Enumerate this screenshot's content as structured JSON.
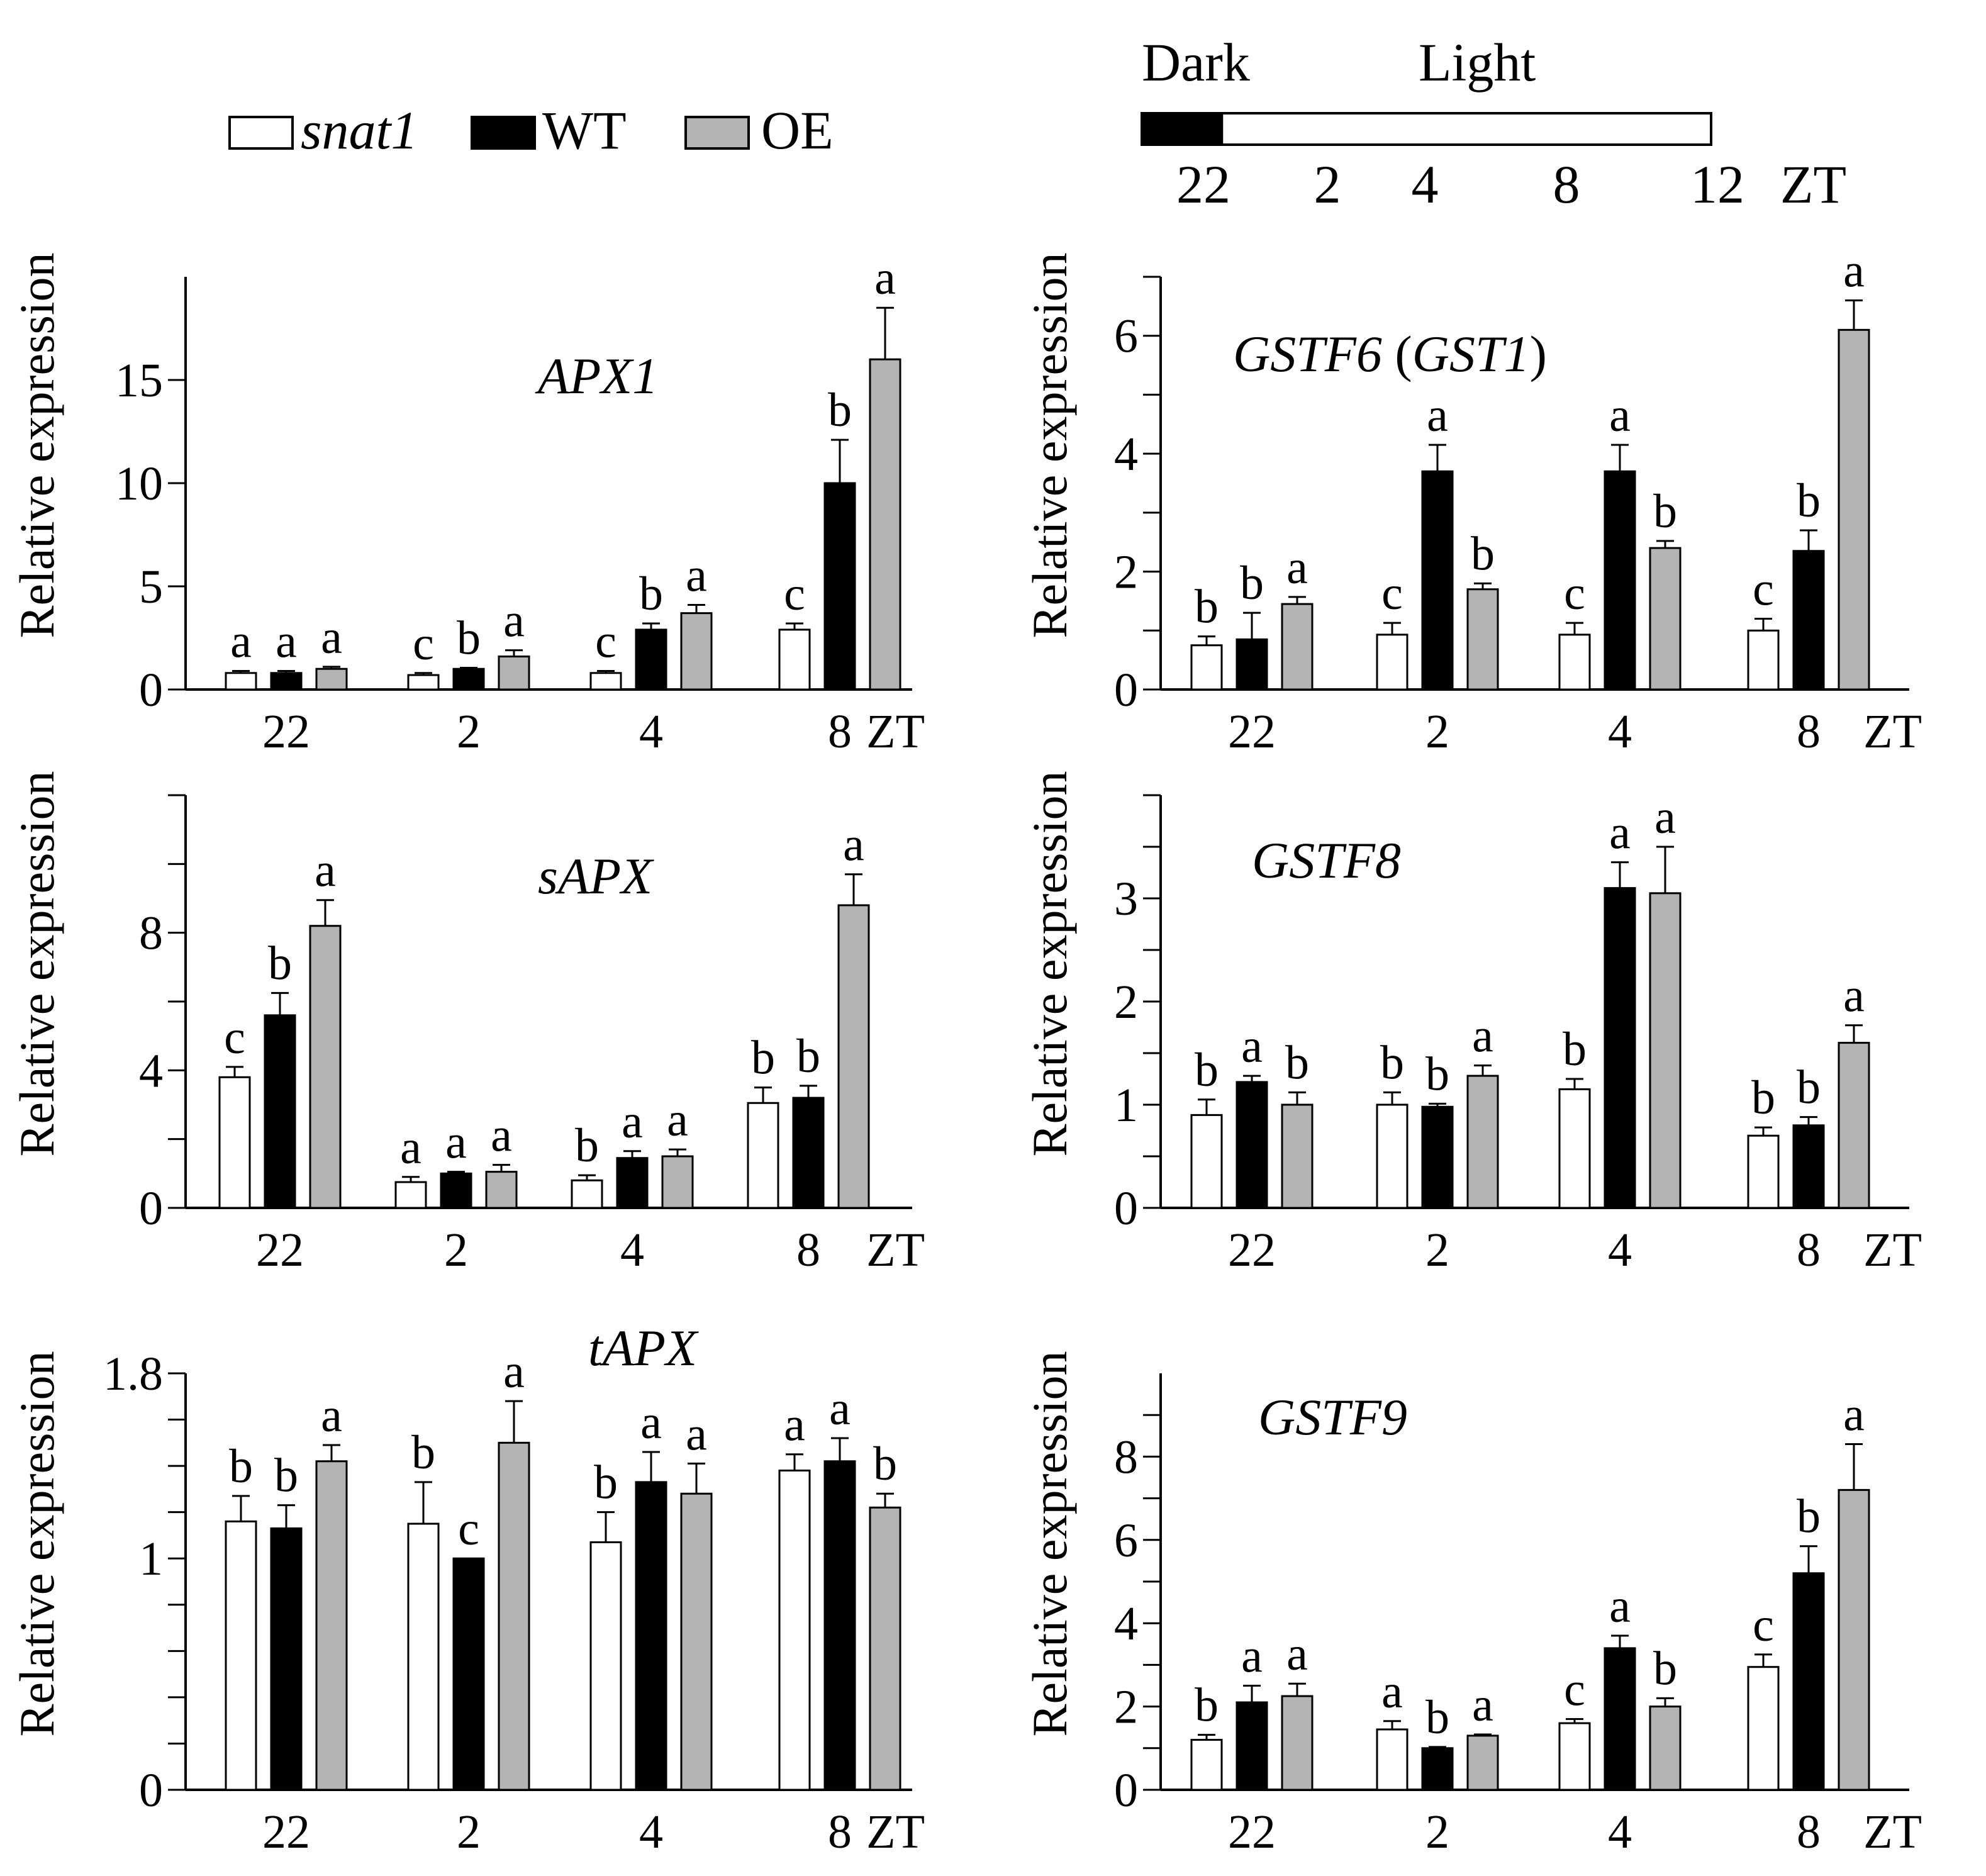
{
  "legend": {
    "items": [
      {
        "label": "snat1",
        "italic": true,
        "fill": "#ffffff"
      },
      {
        "label": "WT",
        "italic": false,
        "fill": "#000000"
      },
      {
        "label": "OE",
        "italic": false,
        "fill": "#b4b4b4"
      }
    ]
  },
  "photoperiod": {
    "dark_label": "Dark",
    "light_label": "Light",
    "dark_start_zt": 22,
    "dark_end_zt": 24,
    "end_zt": 12,
    "ticks": [
      "22",
      "2",
      "4",
      "8",
      "12"
    ],
    "unit": "ZT"
  },
  "colors": {
    "snat1": "#ffffff",
    "WT": "#000000",
    "OE": "#b4b4b4",
    "axis": "#000000"
  },
  "chart_data": [
    {
      "type": "bar",
      "panel": "A",
      "title": "APX1",
      "title_parts": [
        {
          "text": "APX1",
          "italic": true
        }
      ],
      "ylabel": "Relative expression",
      "xlabel": "ZT",
      "categories": [
        "22",
        "2",
        "4",
        "8"
      ],
      "ylim": [
        0,
        20
      ],
      "yticks_labeled": [
        0,
        5,
        10,
        15
      ],
      "yminor": [],
      "series": [
        {
          "name": "snat1",
          "values": [
            0.8,
            0.7,
            0.8,
            2.9
          ],
          "errors": [
            0.1,
            0.1,
            0.1,
            0.3
          ],
          "letters": [
            "a",
            "c",
            "c",
            "c"
          ]
        },
        {
          "name": "WT",
          "values": [
            0.8,
            1.0,
            2.9,
            10.0
          ],
          "errors": [
            0.1,
            0.05,
            0.3,
            2.1
          ],
          "letters": [
            "a",
            "b",
            "b",
            "b"
          ]
        },
        {
          "name": "OE",
          "values": [
            1.0,
            1.6,
            3.7,
            16.0
          ],
          "errors": [
            0.1,
            0.3,
            0.4,
            2.5
          ],
          "letters": [
            "a",
            "a",
            "a",
            "a"
          ]
        }
      ]
    },
    {
      "type": "bar",
      "panel": "B",
      "title": "GSTF6 (GST1)",
      "title_parts": [
        {
          "text": "GSTF6",
          "italic": true
        },
        {
          "text": " (",
          "italic": false
        },
        {
          "text": "GST1",
          "italic": true
        },
        {
          "text": ")",
          "italic": false
        }
      ],
      "ylabel": "Relative expression",
      "xlabel": "ZT",
      "categories": [
        "22",
        "2",
        "4",
        "8"
      ],
      "ylim": [
        0,
        7
      ],
      "yticks_labeled": [
        0,
        2,
        4,
        6
      ],
      "yminor": [
        1,
        3,
        5,
        7
      ],
      "series": [
        {
          "name": "snat1",
          "values": [
            0.75,
            0.93,
            0.93,
            1.0
          ],
          "errors": [
            0.15,
            0.2,
            0.2,
            0.2
          ],
          "letters": [
            "b",
            "c",
            "c",
            "c"
          ]
        },
        {
          "name": "WT",
          "values": [
            0.85,
            3.7,
            3.7,
            2.35
          ],
          "errors": [
            0.45,
            0.45,
            0.45,
            0.35
          ],
          "letters": [
            "b",
            "a",
            "a",
            "b"
          ]
        },
        {
          "name": "OE",
          "values": [
            1.45,
            1.7,
            2.4,
            6.1
          ],
          "errors": [
            0.12,
            0.1,
            0.12,
            0.5
          ],
          "letters": [
            "a",
            "b",
            "b",
            "a"
          ]
        }
      ]
    },
    {
      "type": "bar",
      "panel": "C",
      "title": "sAPX",
      "title_parts": [
        {
          "text": "sAPX",
          "italic": true
        }
      ],
      "ylabel": "Relative expression",
      "xlabel": "ZT",
      "categories": [
        "22",
        "2",
        "4",
        "8"
      ],
      "ylim": [
        0,
        12
      ],
      "yticks_labeled": [
        0,
        4,
        8
      ],
      "yminor": [
        2,
        6,
        10,
        12
      ],
      "series": [
        {
          "name": "snat1",
          "values": [
            3.8,
            0.75,
            0.8,
            3.05
          ],
          "errors": [
            0.3,
            0.15,
            0.15,
            0.45
          ],
          "letters": [
            "c",
            "a",
            "b",
            "b"
          ]
        },
        {
          "name": "WT",
          "values": [
            5.6,
            1.0,
            1.45,
            3.2
          ],
          "errors": [
            0.65,
            0.05,
            0.2,
            0.35
          ],
          "letters": [
            "b",
            "a",
            "a",
            "b"
          ]
        },
        {
          "name": "OE",
          "values": [
            8.2,
            1.05,
            1.5,
            8.8
          ],
          "errors": [
            0.75,
            0.2,
            0.2,
            0.9
          ],
          "letters": [
            "a",
            "a",
            "a",
            "a"
          ]
        }
      ]
    },
    {
      "type": "bar",
      "panel": "D",
      "title": "GSTF8",
      "title_parts": [
        {
          "text": "GSTF8",
          "italic": true
        }
      ],
      "ylabel": "Relative expression",
      "xlabel": "ZT",
      "categories": [
        "22",
        "2",
        "4",
        "8"
      ],
      "ylim": [
        0,
        4
      ],
      "yticks_labeled": [
        0,
        1,
        2,
        3
      ],
      "yminor": [
        0.5,
        1.5,
        2.5,
        3.5,
        4
      ],
      "series": [
        {
          "name": "snat1",
          "values": [
            0.9,
            1.0,
            1.15,
            0.7
          ],
          "errors": [
            0.15,
            0.12,
            0.1,
            0.08
          ],
          "letters": [
            "b",
            "b",
            "b",
            "b"
          ]
        },
        {
          "name": "WT",
          "values": [
            1.22,
            0.98,
            3.1,
            0.8
          ],
          "errors": [
            0.06,
            0.03,
            0.25,
            0.08
          ],
          "letters": [
            "a",
            "b",
            "a",
            "b"
          ]
        },
        {
          "name": "OE",
          "values": [
            1.0,
            1.28,
            3.05,
            1.6
          ],
          "errors": [
            0.12,
            0.1,
            0.45,
            0.17
          ],
          "letters": [
            "b",
            "a",
            "a",
            "a"
          ]
        }
      ]
    },
    {
      "type": "bar",
      "panel": "E",
      "title": "tAPX",
      "title_parts": [
        {
          "text": "tAPX",
          "italic": true
        }
      ],
      "ylabel": "Relative expression",
      "xlabel": "ZT",
      "categories": [
        "22",
        "2",
        "4",
        "8"
      ],
      "ylim": [
        0,
        1.8
      ],
      "yticks_labeled": [
        {
          "value": 0,
          "label": "0"
        },
        {
          "value": 1,
          "label": "1"
        },
        {
          "value": 1.8,
          "label": "1.8"
        }
      ],
      "yminor": [
        0.2,
        0.4,
        0.6,
        0.8,
        1.2,
        1.4,
        1.6
      ],
      "series": [
        {
          "name": "snat1",
          "values": [
            1.16,
            1.15,
            1.07,
            1.38
          ],
          "errors": [
            0.11,
            0.18,
            0.13,
            0.07
          ],
          "letters": [
            "b",
            "b",
            "b",
            "a"
          ]
        },
        {
          "name": "WT",
          "values": [
            1.13,
            1.0,
            1.33,
            1.42
          ],
          "errors": [
            0.1,
            0.0,
            0.13,
            0.1
          ],
          "letters": [
            "b",
            "c",
            "a",
            "a"
          ]
        },
        {
          "name": "OE",
          "values": [
            1.42,
            1.5,
            1.28,
            1.22
          ],
          "errors": [
            0.07,
            0.18,
            0.13,
            0.06
          ],
          "letters": [
            "a",
            "a",
            "a",
            "b"
          ]
        }
      ]
    },
    {
      "type": "bar",
      "panel": "F",
      "title": "GSTF9",
      "title_parts": [
        {
          "text": "GSTF9",
          "italic": true
        }
      ],
      "ylabel": "Relative expression",
      "xlabel": "ZT",
      "categories": [
        "22",
        "2",
        "4",
        "8"
      ],
      "ylim": [
        0,
        10
      ],
      "yticks_labeled": [
        0,
        2,
        4,
        6,
        8
      ],
      "yminor": [
        1,
        3,
        5,
        7,
        9
      ],
      "series": [
        {
          "name": "snat1",
          "values": [
            1.2,
            1.45,
            1.6,
            2.95
          ],
          "errors": [
            0.12,
            0.2,
            0.1,
            0.3
          ],
          "letters": [
            "b",
            "a",
            "c",
            "c"
          ]
        },
        {
          "name": "WT",
          "values": [
            2.1,
            1.0,
            3.4,
            5.2
          ],
          "errors": [
            0.4,
            0.03,
            0.3,
            0.65
          ],
          "letters": [
            "a",
            "b",
            "a",
            "b"
          ]
        },
        {
          "name": "OE",
          "values": [
            2.25,
            1.3,
            2.0,
            7.2
          ],
          "errors": [
            0.3,
            0.03,
            0.2,
            1.1
          ],
          "letters": [
            "a",
            "a",
            "b",
            "a"
          ]
        }
      ]
    }
  ]
}
